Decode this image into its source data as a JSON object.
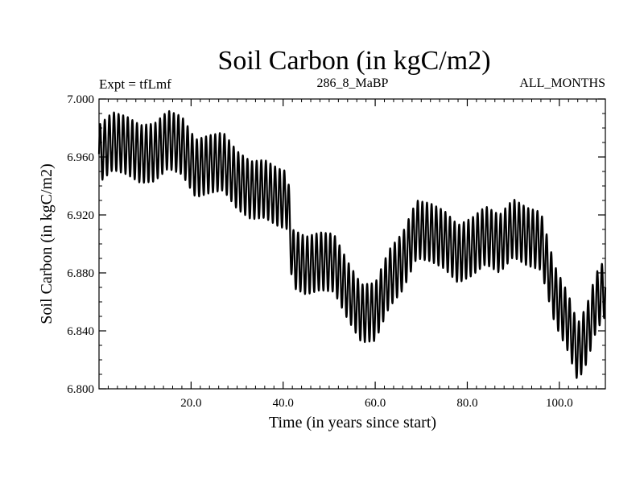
{
  "chart_data": {
    "type": "line",
    "title": "Soil Carbon (in kgC/m2)",
    "subtitle_left": "Expt = tfLmf",
    "subtitle_center": "286_8_MaBP",
    "subtitle_right": "ALL_MONTHS",
    "xlabel": "Time (in years since start)",
    "ylabel": "Soil Carbon (in kgC/m2)",
    "xlim": [
      0,
      110
    ],
    "ylim": [
      6.8,
      7.0
    ],
    "xticks": [
      20,
      40,
      60,
      80,
      100
    ],
    "xtick_labels": [
      "20.0",
      "40.0",
      "60.0",
      "80.0",
      "100.0"
    ],
    "yticks": [
      6.8,
      6.84,
      6.88,
      6.92,
      6.96,
      7.0
    ],
    "ytick_labels": [
      "6.800",
      "6.840",
      "6.880",
      "6.920",
      "6.960",
      "7.000"
    ],
    "annual_cycle_amplitude": 0.02,
    "trend_points": {
      "x": [
        0,
        3,
        6,
        9,
        12,
        15,
        18,
        21,
        24,
        27,
        30,
        33,
        36,
        39,
        41,
        42,
        45,
        48,
        51,
        54,
        57,
        60,
        63,
        66,
        69,
        72,
        75,
        78,
        81,
        84,
        87,
        90,
        93,
        96,
        99,
        102,
        104,
        106,
        108,
        110
      ],
      "y": [
        6.962,
        6.971,
        6.968,
        6.962,
        6.963,
        6.972,
        6.968,
        6.952,
        6.955,
        6.957,
        6.944,
        6.937,
        6.938,
        6.932,
        6.93,
        6.89,
        6.885,
        6.888,
        6.887,
        6.868,
        6.852,
        6.853,
        6.876,
        6.888,
        6.91,
        6.908,
        6.903,
        6.893,
        6.898,
        6.906,
        6.9,
        6.911,
        6.905,
        6.902,
        6.865,
        6.845,
        6.825,
        6.838,
        6.86,
        6.87
      ]
    }
  }
}
